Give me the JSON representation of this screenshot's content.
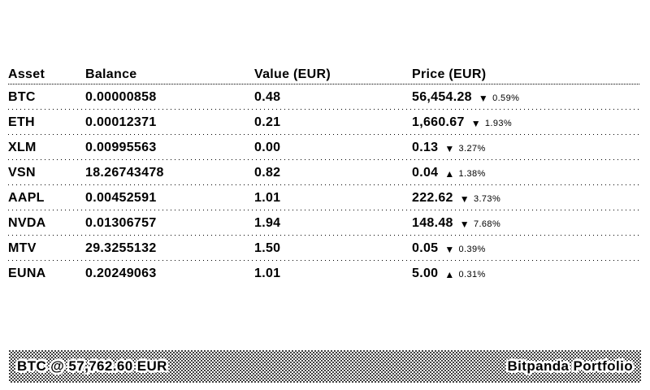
{
  "colors": {
    "text": "#000000",
    "background": "#ffffff"
  },
  "icons": {
    "up": "▲",
    "down": "▼"
  },
  "table": {
    "headers": [
      "Asset",
      "Balance",
      "Value (EUR)",
      "Price (EUR)"
    ],
    "rows": [
      {
        "asset": "BTC",
        "balance": "0.00000858",
        "value": "0.48",
        "price": "56,454.28",
        "direction": "down",
        "change": "0.59%"
      },
      {
        "asset": "ETH",
        "balance": "0.00012371",
        "value": "0.21",
        "price": "1,660.67",
        "direction": "down",
        "change": "1.93%"
      },
      {
        "asset": "XLM",
        "balance": "0.00995563",
        "value": "0.00",
        "price": "0.13",
        "direction": "down",
        "change": "3.27%"
      },
      {
        "asset": "VSN",
        "balance": "18.26743478",
        "value": "0.82",
        "price": "0.04",
        "direction": "up",
        "change": "1.38%"
      },
      {
        "asset": "AAPL",
        "balance": "0.00452591",
        "value": "1.01",
        "price": "222.62",
        "direction": "down",
        "change": "3.73%"
      },
      {
        "asset": "NVDA",
        "balance": "0.01306757",
        "value": "1.94",
        "price": "148.48",
        "direction": "down",
        "change": "7.68%"
      },
      {
        "asset": "MTV",
        "balance": "29.3255132",
        "value": "1.50",
        "price": "0.05",
        "direction": "down",
        "change": "0.39%"
      },
      {
        "asset": "EUNA",
        "balance": "0.20249063",
        "value": "1.01",
        "price": "5.00",
        "direction": "up",
        "change": "0.31%"
      }
    ]
  },
  "footer": {
    "ticker": "BTC @ 57,762.60 EUR",
    "app_title": "Bitpanda Portfolio"
  }
}
